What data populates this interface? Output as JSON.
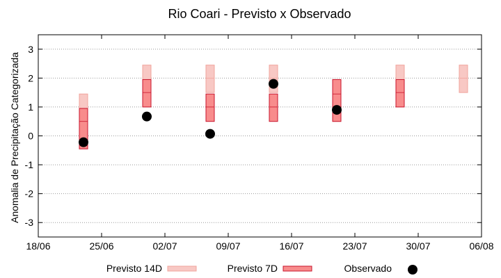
{
  "chart_data": {
    "type": "box",
    "title": "Rio Coari - Previsto x Observado",
    "ylabel": "Anomalia de Precipitação Categorizada",
    "xlabel": "",
    "ylim": [
      -3.5,
      3.5
    ],
    "xlim": [
      "2024-06-18",
      "2024-08-06"
    ],
    "x_ticks": [
      "18/06",
      "25/06",
      "02/07",
      "09/07",
      "16/07",
      "23/07",
      "30/07",
      "06/08"
    ],
    "y_ticks": [
      -3,
      -2,
      -1,
      0,
      1,
      2,
      3
    ],
    "grid": "horizontal-dotted",
    "legend_placement": "bottom",
    "colors": {
      "forecast_14d_fill": "#f8c8c4",
      "forecast_14d_stroke": "#f0a49c",
      "forecast_7d_fill": "#f88c8c",
      "forecast_7d_stroke": "#c8142c",
      "observed": "#000000",
      "grid": "#999999"
    },
    "legend": {
      "forecast_14d": "Previsto 14D",
      "forecast_7d": "Previsto 7D",
      "observed": "Observado"
    },
    "series": [
      {
        "name": "Previsto 14D",
        "boxes": [
          {
            "x": "2024-06-23",
            "low": -0.45,
            "mid": 0.5,
            "high": 1.45
          },
          {
            "x": "2024-06-30",
            "low": 1.0,
            "mid": 1.5,
            "high": 2.45
          },
          {
            "x": "2024-07-07",
            "low": 1.5,
            "mid": 2.0,
            "high": 2.45
          },
          {
            "x": "2024-07-14",
            "low": 1.5,
            "mid": 2.0,
            "high": 2.45
          },
          {
            "x": "2024-07-21",
            "low": 0.5,
            "mid": 1.0,
            "high": 1.95
          },
          {
            "x": "2024-07-28",
            "low": 1.0,
            "mid": 1.5,
            "high": 2.45
          },
          {
            "x": "2024-08-04",
            "low": 1.5,
            "mid": 2.0,
            "high": 2.45
          }
        ]
      },
      {
        "name": "Previsto 7D",
        "boxes": [
          {
            "x": "2024-06-23",
            "low": -0.45,
            "mid": 0.5,
            "high": 0.95
          },
          {
            "x": "2024-06-30",
            "low": 1.0,
            "mid": 1.5,
            "high": 1.95
          },
          {
            "x": "2024-07-07",
            "low": 0.5,
            "mid": 1.0,
            "high": 1.45
          },
          {
            "x": "2024-07-14",
            "low": 0.5,
            "mid": 1.0,
            "high": 1.45
          },
          {
            "x": "2024-07-21",
            "low": 0.5,
            "mid": 1.45,
            "high": 1.95
          },
          {
            "x": "2024-07-28",
            "low": 1.0,
            "mid": 1.5,
            "high": 1.95
          }
        ]
      },
      {
        "name": "Observado",
        "points": [
          {
            "x": "2024-06-23",
            "y": -0.22
          },
          {
            "x": "2024-06-30",
            "y": 0.67
          },
          {
            "x": "2024-07-07",
            "y": 0.07
          },
          {
            "x": "2024-07-14",
            "y": 1.8
          },
          {
            "x": "2024-07-21",
            "y": 0.9
          }
        ]
      }
    ]
  }
}
